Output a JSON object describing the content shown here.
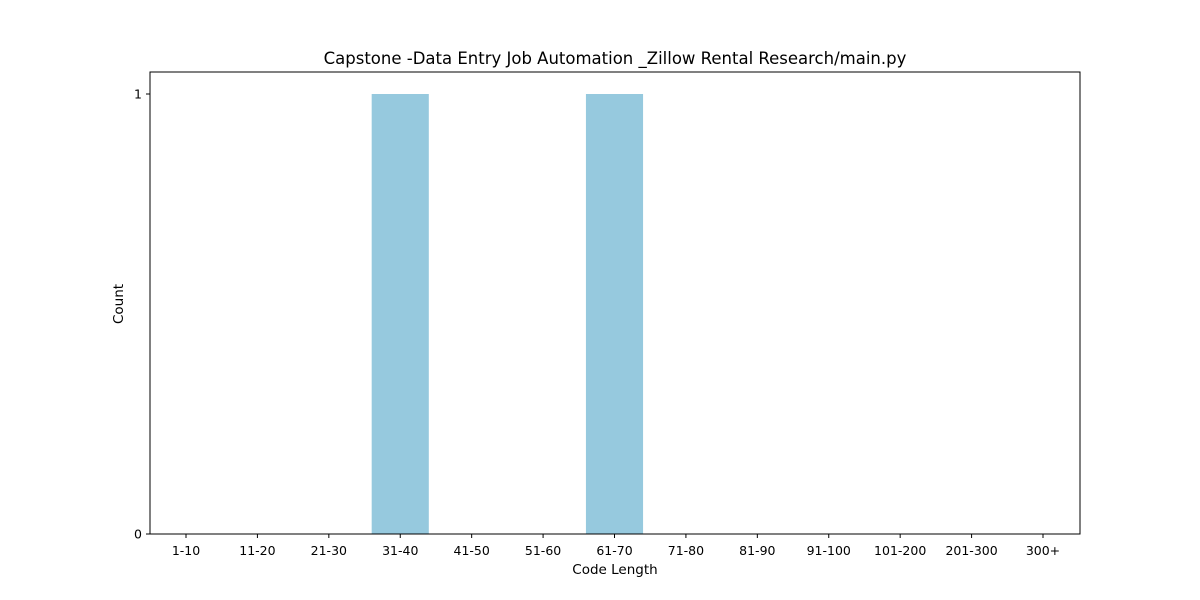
{
  "chart_data": {
    "type": "bar",
    "title": "Capstone -Data Entry Job Automation _Zillow Rental Research/main.py",
    "xlabel": "Code Length",
    "ylabel": "Count",
    "categories": [
      "1-10",
      "11-20",
      "21-30",
      "31-40",
      "41-50",
      "51-60",
      "61-70",
      "71-80",
      "81-90",
      "91-100",
      "101-200",
      "201-300",
      "300+"
    ],
    "values": [
      0,
      0,
      0,
      1,
      0,
      0,
      1,
      0,
      0,
      0,
      0,
      0,
      0
    ],
    "ylim": [
      0,
      1
    ],
    "yticks": [
      "0",
      "1"
    ],
    "grid": false,
    "bar_color": "#96c9de"
  }
}
